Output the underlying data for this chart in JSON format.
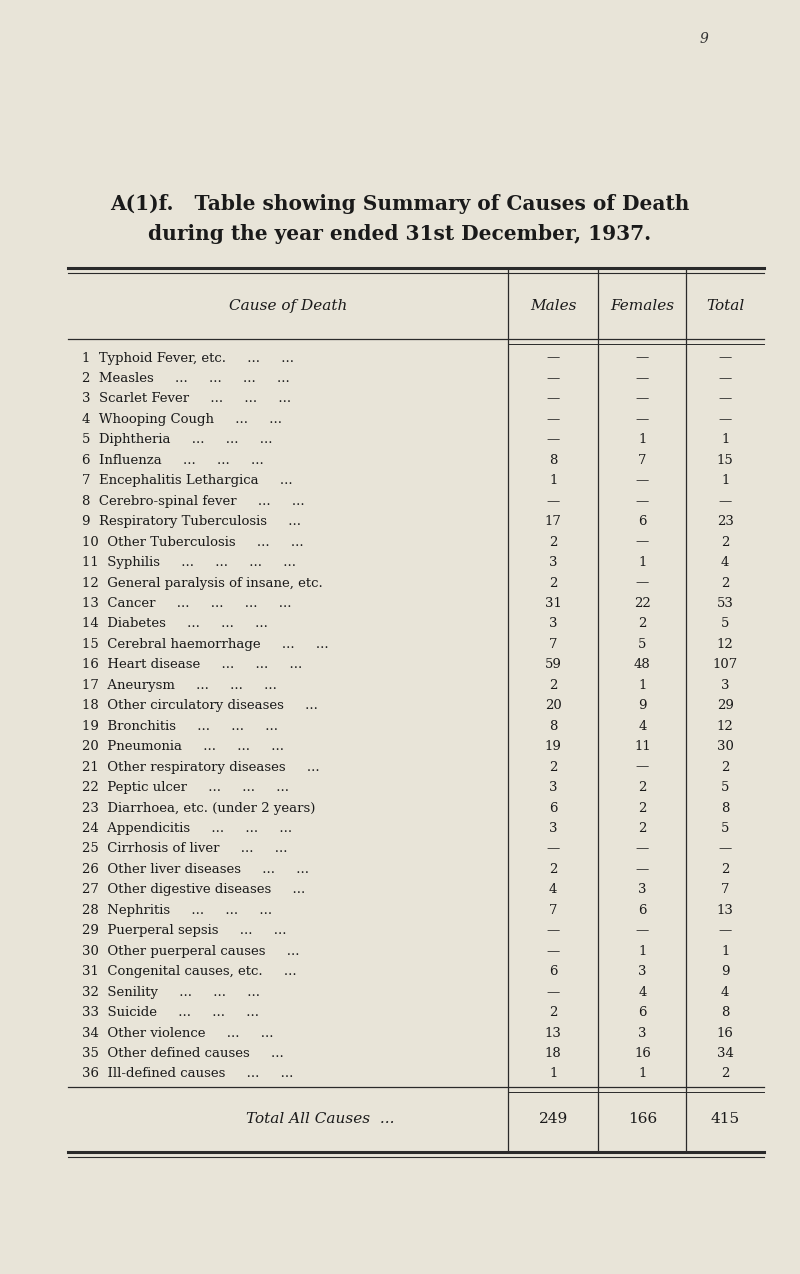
{
  "page_number": "9",
  "title_line1": "A(1)f.   Table showing Summary of Causes of Death",
  "title_line2": "during the year ended 31st December, 1937.",
  "col_headers": [
    "Cause of Death",
    "Males",
    "Females",
    "Total"
  ],
  "rows": [
    [
      "1  Typhoid Fever, etc.     ...     ...",
      "—",
      "—",
      "—"
    ],
    [
      "2  Measles     ...     ...     ...     ...",
      "—",
      "—",
      "—"
    ],
    [
      "3  Scarlet Fever     ...     ...     ...",
      "—",
      "—",
      "—"
    ],
    [
      "4  Whooping Cough     ...     ...",
      "—",
      "—",
      "—"
    ],
    [
      "5  Diphtheria     ...     ...     ...",
      "—",
      "1",
      "1"
    ],
    [
      "6  Influenza     ...     ...     ...",
      "8",
      "7",
      "15"
    ],
    [
      "7  Encephalitis Lethargica     ...",
      "1",
      "—",
      "1"
    ],
    [
      "8  Cerebro-spinal fever     ...     ...",
      "—",
      "—",
      "—"
    ],
    [
      "9  Respiratory Tuberculosis     ...",
      "17",
      "6",
      "23"
    ],
    [
      "10  Other Tuberculosis     ...     ...",
      "2",
      "—",
      "2"
    ],
    [
      "11  Syphilis     ...     ...     ...     ...",
      "3",
      "1",
      "4"
    ],
    [
      "12  General paralysis of insane, etc.",
      "2",
      "—",
      "2"
    ],
    [
      "13  Cancer     ...     ...     ...     ...",
      "31",
      "22",
      "53"
    ],
    [
      "14  Diabetes     ...     ...     ...",
      "3",
      "2",
      "5"
    ],
    [
      "15  Cerebral haemorrhage     ...     ...",
      "7",
      "5",
      "12"
    ],
    [
      "16  Heart disease     ...     ...     ...",
      "59",
      "48",
      "107"
    ],
    [
      "17  Aneurysm     ...     ...     ...",
      "2",
      "1",
      "3"
    ],
    [
      "18  Other circulatory diseases     ...",
      "20",
      "9",
      "29"
    ],
    [
      "19  Bronchitis     ...     ...     ...",
      "8",
      "4",
      "12"
    ],
    [
      "20  Pneumonia     ...     ...     ...",
      "19",
      "11",
      "30"
    ],
    [
      "21  Other respiratory diseases     ...",
      "2",
      "—",
      "2"
    ],
    [
      "22  Peptic ulcer     ...     ...     ...",
      "3",
      "2",
      "5"
    ],
    [
      "23  Diarrhoea, etc. (under 2 years)",
      "6",
      "2",
      "8"
    ],
    [
      "24  Appendicitis     ...     ...     ...",
      "3",
      "2",
      "5"
    ],
    [
      "25  Cirrhosis of liver     ...     ...",
      "—",
      "—",
      "—"
    ],
    [
      "26  Other liver diseases     ...     ...",
      "2",
      "—",
      "2"
    ],
    [
      "27  Other digestive diseases     ...",
      "4",
      "3",
      "7"
    ],
    [
      "28  Nephritis     ...     ...     ...",
      "7",
      "6",
      "13"
    ],
    [
      "29  Puerperal sepsis     ...     ...",
      "—",
      "—",
      "—"
    ],
    [
      "30  Other puerperal causes     ...",
      "—",
      "1",
      "1"
    ],
    [
      "31  Congenital causes, etc.     ...",
      "6",
      "3",
      "9"
    ],
    [
      "32  Senility     ...     ...     ...",
      "—",
      "4",
      "4"
    ],
    [
      "33  Suicide     ...     ...     ...",
      "2",
      "6",
      "8"
    ],
    [
      "34  Other violence     ...     ...",
      "13",
      "3",
      "16"
    ],
    [
      "35  Other defined causes     ...",
      "18",
      "16",
      "34"
    ],
    [
      "36  Ill-defined causes     ...     ...",
      "1",
      "1",
      "2"
    ]
  ],
  "total_row": [
    "Total All Causes  ...",
    "249",
    "166",
    "415"
  ],
  "bg_color": "#e8e4d8",
  "text_color": "#1a1a1a",
  "line_color": "#2a2a2a",
  "page_num_color": "#333333",
  "title_fontsize": 14.5,
  "header_fontsize": 11,
  "row_fontsize": 9.5,
  "total_fontsize": 11
}
